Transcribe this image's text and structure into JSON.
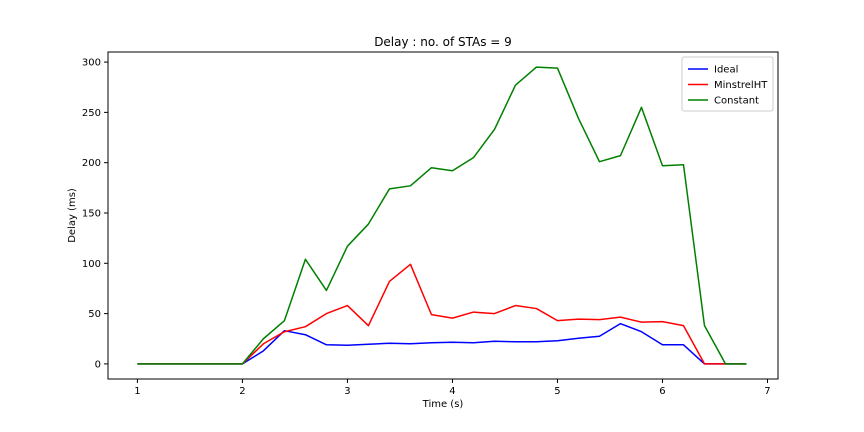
{
  "chart_data": {
    "type": "line",
    "title": "Delay : no. of STAs = 9",
    "xlabel": "Time (s)",
    "ylabel": "Delay (ms)",
    "xlim": [
      0.72,
      7.1
    ],
    "ylim": [
      -15,
      310
    ],
    "xticks": [
      1,
      2,
      3,
      4,
      5,
      6,
      7
    ],
    "yticks": [
      0,
      50,
      100,
      150,
      200,
      250,
      300
    ],
    "grid": false,
    "legend_position": "top-right",
    "x": [
      1,
      1.2,
      1.4,
      1.6,
      1.8,
      2,
      2.2,
      2.4,
      2.6,
      2.8,
      3,
      3.2,
      3.4,
      3.6,
      3.8,
      4,
      4.2,
      4.4,
      4.6,
      4.8,
      5,
      5.2,
      5.4,
      5.6,
      5.8,
      6,
      6.2,
      6.4,
      6.6,
      6.8
    ],
    "series": [
      {
        "name": "Ideal",
        "color": "#0000ff",
        "values": [
          0,
          0,
          0,
          0,
          0,
          0,
          13,
          33,
          29,
          19,
          18.5,
          19.5,
          20.5,
          20,
          21,
          21.5,
          21,
          22.5,
          22,
          22,
          23,
          25.5,
          27.5,
          40,
          32,
          19,
          19,
          0,
          0,
          0
        ]
      },
      {
        "name": "MinstrelHT",
        "color": "#ff0000",
        "values": [
          0,
          0,
          0,
          0,
          0,
          0,
          20,
          32,
          37,
          50,
          58,
          38,
          82,
          99,
          49,
          45.5,
          51.5,
          50,
          58,
          55,
          43,
          44.5,
          44,
          46.5,
          41.5,
          42,
          38,
          0,
          0,
          0
        ]
      },
      {
        "name": "Constant",
        "color": "#008000",
        "values": [
          0,
          0,
          0,
          0,
          0,
          0,
          25,
          43,
          104,
          73,
          117,
          139,
          174,
          177,
          195,
          192,
          205,
          233,
          277,
          295,
          294,
          244,
          201,
          207,
          255,
          197,
          198,
          38,
          0,
          0
        ]
      }
    ]
  }
}
